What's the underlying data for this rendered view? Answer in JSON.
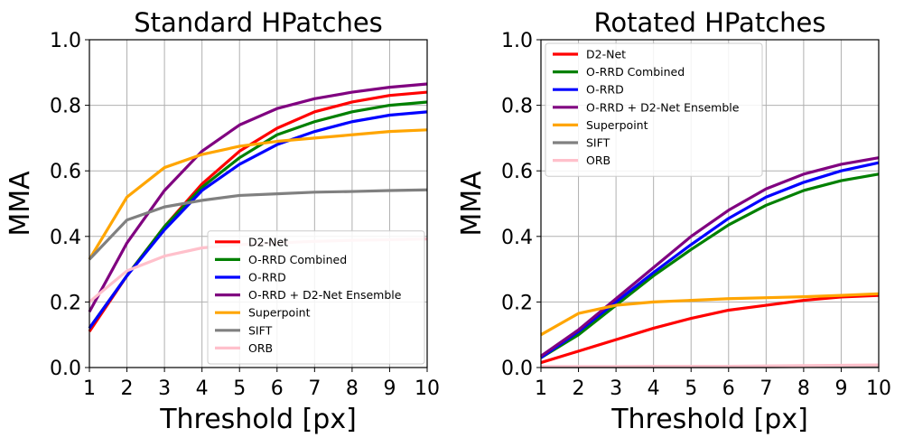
{
  "chart_data": [
    {
      "type": "line",
      "title": "Standard HPatches",
      "xlabel": "Threshold [px]",
      "ylabel": "MMA",
      "xlim": [
        1,
        10
      ],
      "ylim": [
        0.0,
        1.0
      ],
      "xticks": [
        "1",
        "2",
        "3",
        "4",
        "5",
        "6",
        "7",
        "8",
        "9",
        "10"
      ],
      "yticks": [
        "0.0",
        "0.2",
        "0.4",
        "0.6",
        "0.8",
        "1.0"
      ],
      "grid": true,
      "legend_position": "lower-right",
      "x": [
        1,
        2,
        3,
        4,
        5,
        6,
        7,
        8,
        9,
        10
      ],
      "series": [
        {
          "name": "D2-Net",
          "color": "#ff0000",
          "values": [
            0.11,
            0.28,
            0.43,
            0.56,
            0.66,
            0.73,
            0.78,
            0.81,
            0.83,
            0.84
          ]
        },
        {
          "name": "O-RRD Combined",
          "color": "#008000",
          "values": [
            0.12,
            0.28,
            0.43,
            0.55,
            0.64,
            0.71,
            0.75,
            0.78,
            0.8,
            0.81
          ]
        },
        {
          "name": "O-RRD",
          "color": "#0000ff",
          "values": [
            0.12,
            0.28,
            0.42,
            0.54,
            0.62,
            0.68,
            0.72,
            0.75,
            0.77,
            0.78
          ]
        },
        {
          "name": "O-RRD + D2-Net Ensemble",
          "color": "#800080",
          "values": [
            0.17,
            0.38,
            0.54,
            0.66,
            0.74,
            0.79,
            0.82,
            0.84,
            0.855,
            0.865
          ]
        },
        {
          "name": "Superpoint",
          "color": "#ffa500",
          "values": [
            0.33,
            0.52,
            0.61,
            0.65,
            0.675,
            0.69,
            0.7,
            0.71,
            0.72,
            0.725
          ]
        },
        {
          "name": "SIFT",
          "color": "#808080",
          "values": [
            0.33,
            0.45,
            0.49,
            0.51,
            0.525,
            0.53,
            0.535,
            0.537,
            0.54,
            0.542
          ]
        },
        {
          "name": "ORB",
          "color": "#ffc0cb",
          "values": [
            0.2,
            0.295,
            0.34,
            0.365,
            0.375,
            0.38,
            0.385,
            0.388,
            0.39,
            0.392
          ]
        }
      ]
    },
    {
      "type": "line",
      "title": "Rotated HPatches",
      "xlabel": "Threshold [px]",
      "ylabel": "MMA",
      "xlim": [
        1,
        10
      ],
      "ylim": [
        0.0,
        1.0
      ],
      "xticks": [
        "1",
        "2",
        "3",
        "4",
        "5",
        "6",
        "7",
        "8",
        "9",
        "10"
      ],
      "yticks": [
        "0.0",
        "0.2",
        "0.4",
        "0.6",
        "0.8",
        "1.0"
      ],
      "grid": true,
      "legend_position": "upper-left",
      "x": [
        1,
        2,
        3,
        4,
        5,
        6,
        7,
        8,
        9,
        10
      ],
      "series": [
        {
          "name": "D2-Net",
          "color": "#ff0000",
          "values": [
            0.015,
            0.05,
            0.085,
            0.12,
            0.15,
            0.175,
            0.19,
            0.205,
            0.215,
            0.22
          ]
        },
        {
          "name": "O-RRD Combined",
          "color": "#008000",
          "values": [
            0.03,
            0.1,
            0.19,
            0.28,
            0.36,
            0.435,
            0.495,
            0.54,
            0.57,
            0.59
          ]
        },
        {
          "name": "O-RRD",
          "color": "#0000ff",
          "values": [
            0.03,
            0.11,
            0.2,
            0.29,
            0.375,
            0.455,
            0.52,
            0.565,
            0.6,
            0.625
          ]
        },
        {
          "name": "O-RRD + D2-Net Ensemble",
          "color": "#800080",
          "values": [
            0.035,
            0.115,
            0.21,
            0.305,
            0.4,
            0.48,
            0.545,
            0.59,
            0.62,
            0.64
          ]
        },
        {
          "name": "Superpoint",
          "color": "#ffa500",
          "values": [
            0.1,
            0.165,
            0.19,
            0.2,
            0.205,
            0.21,
            0.213,
            0.216,
            0.22,
            0.225
          ]
        },
        {
          "name": "SIFT",
          "color": "#808080",
          "values": [
            0.002,
            0.002,
            0.002,
            0.002,
            0.002,
            0.002,
            0.002,
            0.003,
            0.003,
            0.004
          ]
        },
        {
          "name": "ORB",
          "color": "#ffc0cb",
          "values": [
            0.003,
            0.003,
            0.003,
            0.004,
            0.004,
            0.004,
            0.005,
            0.006,
            0.007,
            0.008
          ]
        }
      ]
    }
  ]
}
